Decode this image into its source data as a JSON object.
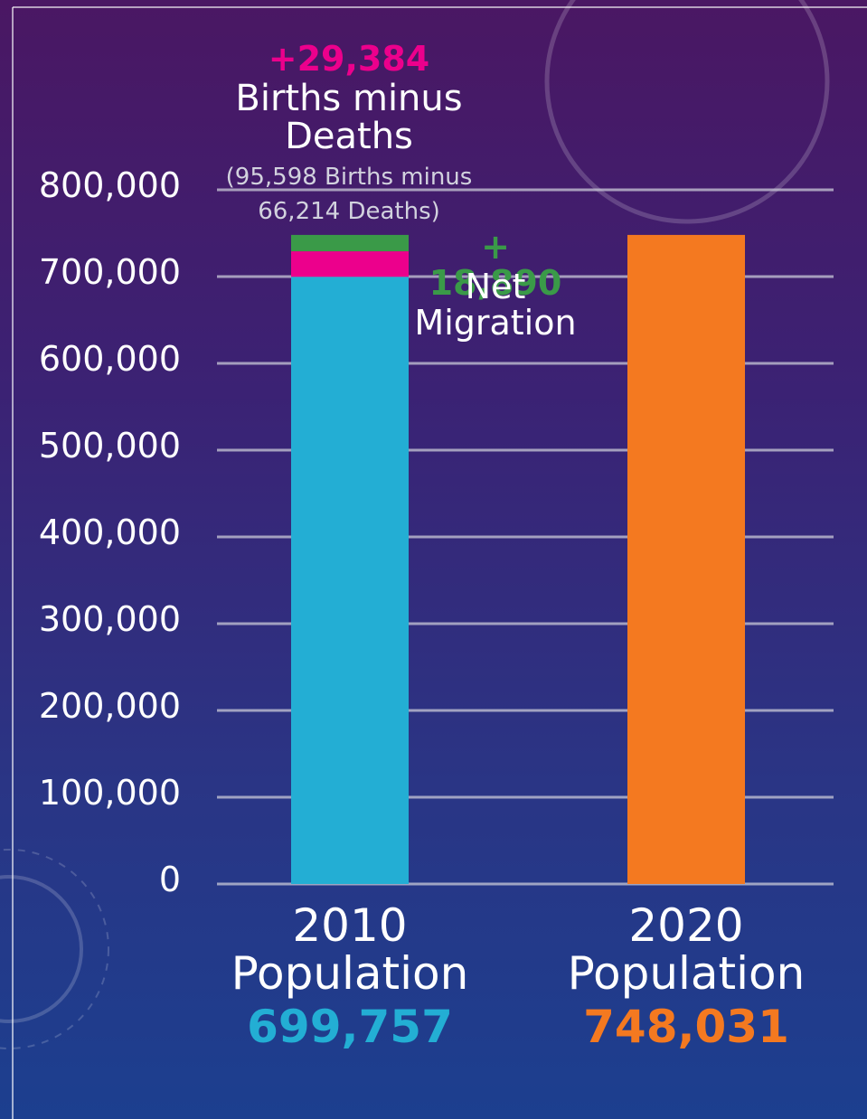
{
  "chart_data": {
    "type": "bar",
    "stacked": true,
    "categories": [
      "2010 Population",
      "2020 Population"
    ],
    "series": [
      {
        "color": "#23aed4",
        "values": [
          699757,
          null
        ],
        "value_labels": [
          "699,757",
          null
        ]
      },
      {
        "color": "#ec008c",
        "values": [
          29384,
          null
        ],
        "value_labels": [
          "+29,384",
          null
        ]
      },
      {
        "color": "#3a9a48",
        "values": [
          18890,
          null
        ],
        "value_labels": [
          "+ 18,890",
          null
        ]
      },
      {
        "color": "#f47920",
        "values": [
          null,
          748031
        ],
        "value_labels": [
          null,
          "748,031"
        ]
      }
    ],
    "annotations": [
      "Births minus Deaths",
      "(95,598 Births minus 66,214 Deaths)",
      "Net Migration"
    ],
    "ylim": [
      0,
      800000
    ],
    "yticks": [
      0,
      {
        "value": 100000,
        "label": "100,000"
      },
      {
        "value": 200000,
        "label": "200,000"
      },
      {
        "value": 300000,
        "label": "300,000"
      },
      {
        "value": 400000,
        "label": "400,000"
      },
      {
        "value": 500000,
        "label": "500,000"
      },
      {
        "value": 600000,
        "label": "600,000"
      },
      {
        "value": 700000,
        "label": "700,000"
      },
      {
        "value": 800000,
        "label": "800,000"
      }
    ],
    "grid": true
  }
}
